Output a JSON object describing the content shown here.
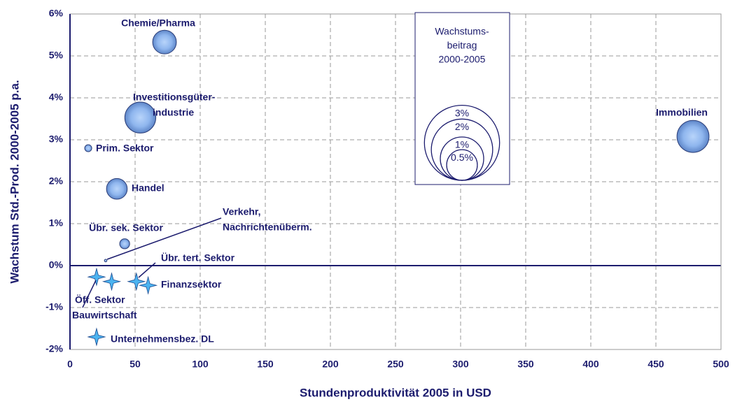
{
  "chart_data": {
    "type": "bubble",
    "x_label": "Stundenproduktivität 2005 in USD",
    "y_label": "Wachstum Std.-Prod. 2000-2005 p.a.",
    "xlim": [
      0,
      500
    ],
    "xticks": [
      0,
      50,
      100,
      150,
      200,
      250,
      300,
      350,
      400,
      450,
      500
    ],
    "ylim": [
      -2,
      6
    ],
    "yticks": [
      {
        "value": -2,
        "label": "-2%"
      },
      {
        "value": -1,
        "label": "-1%"
      },
      {
        "value": 0,
        "label": "0%"
      },
      {
        "value": 1,
        "label": "1%"
      },
      {
        "value": 2,
        "label": "2%"
      },
      {
        "value": 3,
        "label": "3%"
      },
      {
        "value": 4,
        "label": "4%"
      },
      {
        "value": 5,
        "label": "5%"
      },
      {
        "value": 6,
        "label": "6%"
      }
    ],
    "grid": true,
    "series": [
      {
        "marker": "bubble",
        "color": "#7aa6e6",
        "labels": [
          [
            "Chemie/Pharma"
          ],
          [
            "Investitionsgüter-",
            "industrie"
          ],
          [
            "Prim. Sektor"
          ],
          [
            "Handel"
          ],
          [
            "Übr. sek. Sektor"
          ],
          [
            "Verkehr,",
            "Nachrichtenüberm."
          ],
          [
            "Immobilien"
          ]
        ],
        "x": [
          72.6,
          54,
          14,
          36,
          42,
          27.4,
          478.5
        ],
        "values": [
          5.33,
          3.53,
          2.8,
          1.83,
          0.52,
          0.12,
          3.08
        ],
        "sizes": [
          1.7,
          2.9,
          0.15,
          1.3,
          0.3,
          0.02,
          3.1
        ]
      },
      {
        "marker": "star",
        "color": "#4cb4f0",
        "labels": [
          [
            "Bauwirtschaft"
          ],
          [
            "Öff. Sektor"
          ],
          [
            "Übr. tert. Sektor"
          ],
          [
            "Finanzsektor"
          ],
          [
            "Unternehmensbez. DL"
          ]
        ],
        "x": [
          20.4,
          32,
          51,
          60,
          20.4
        ],
        "values": [
          -0.27,
          -0.38,
          -0.38,
          -0.47,
          -1.7
        ]
      }
    ],
    "legend_title": [
      "Wachstums-",
      "beitrag",
      "2000-2005"
    ],
    "legend_sizes": [
      {
        "value": 3,
        "label": "3%"
      },
      {
        "value": 2,
        "label": "2%"
      },
      {
        "value": 1,
        "label": "1%"
      },
      {
        "value": 0.5,
        "label": "0.5%"
      }
    ]
  }
}
